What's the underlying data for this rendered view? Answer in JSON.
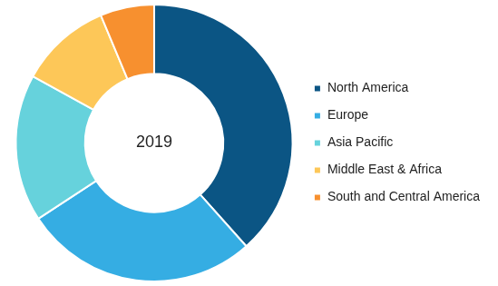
{
  "chart_data": {
    "type": "doughnut",
    "title": "2019",
    "categories": [
      "North America",
      "Europe",
      "Asia Pacific",
      "Middle East & Africa",
      "South and Central America"
    ],
    "values": [
      38.4,
      27.4,
      17.2,
      10.7,
      6.3
    ],
    "colors": [
      "#0b5584",
      "#35ade3",
      "#66d2dc",
      "#fdc758",
      "#f7902f"
    ],
    "legend": "right"
  }
}
